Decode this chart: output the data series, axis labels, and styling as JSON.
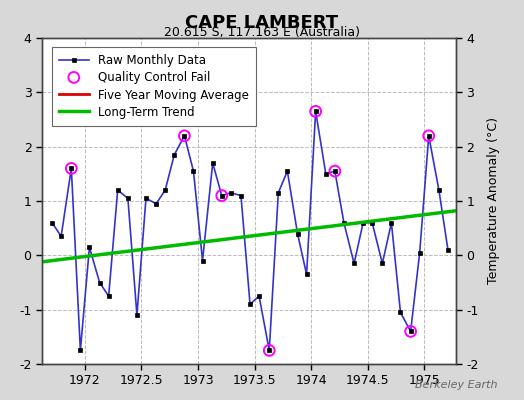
{
  "title": "CAPE LAMBERT",
  "subtitle": "20.615 S, 117.163 E (Australia)",
  "ylabel": "Temperature Anomaly (°C)",
  "watermark": "Berkeley Earth",
  "background_color": "#d8d8d8",
  "plot_bg_color": "#ffffff",
  "grid_color": "#bbbbbb",
  "xlim": [
    1971.62,
    1975.28
  ],
  "ylim": [
    -2,
    4
  ],
  "xticks": [
    1972,
    1972.5,
    1973,
    1973.5,
    1974,
    1974.5,
    1975
  ],
  "yticks": [
    -2,
    -1,
    0,
    1,
    2,
    3,
    4
  ],
  "raw_x": [
    1971.71,
    1971.79,
    1971.88,
    1971.96,
    1972.04,
    1972.13,
    1972.21,
    1972.29,
    1972.38,
    1972.46,
    1972.54,
    1972.63,
    1972.71,
    1972.79,
    1972.88,
    1972.96,
    1973.04,
    1973.13,
    1973.21,
    1973.29,
    1973.38,
    1973.46,
    1973.54,
    1973.63,
    1973.71,
    1973.79,
    1973.88,
    1973.96,
    1974.04,
    1974.13,
    1974.21,
    1974.29,
    1974.38,
    1974.46,
    1974.54,
    1974.63,
    1974.71,
    1974.79,
    1974.88,
    1974.96,
    1975.04,
    1975.13,
    1975.21
  ],
  "raw_y": [
    0.6,
    0.35,
    1.6,
    -1.75,
    0.15,
    -0.5,
    -0.75,
    1.2,
    1.05,
    -1.1,
    1.05,
    0.95,
    1.2,
    1.85,
    2.2,
    1.55,
    -0.1,
    1.7,
    1.1,
    1.15,
    1.1,
    -0.9,
    -0.75,
    -1.75,
    1.15,
    1.55,
    0.4,
    -0.35,
    2.65,
    1.5,
    1.55,
    0.6,
    -0.15,
    0.6,
    0.6,
    -0.15,
    0.6,
    -1.05,
    -1.4,
    0.05,
    2.2,
    1.2,
    0.1
  ],
  "qc_fail_x": [
    1971.88,
    1972.88,
    1973.21,
    1973.63,
    1974.04,
    1974.21,
    1974.88,
    1975.04
  ],
  "qc_fail_y": [
    1.6,
    2.2,
    1.1,
    -1.75,
    2.65,
    1.55,
    -1.4,
    2.2
  ],
  "trend_x": [
    1971.62,
    1975.28
  ],
  "trend_y": [
    -0.12,
    0.82
  ],
  "raw_line_color": "#3333cc",
  "raw_marker_color": "#000000",
  "qc_color": "#ff00ff",
  "trend_color": "#00bb00",
  "mavg_color": "#dd0000",
  "title_fontsize": 13,
  "subtitle_fontsize": 9,
  "tick_fontsize": 9,
  "legend_fontsize": 8.5
}
